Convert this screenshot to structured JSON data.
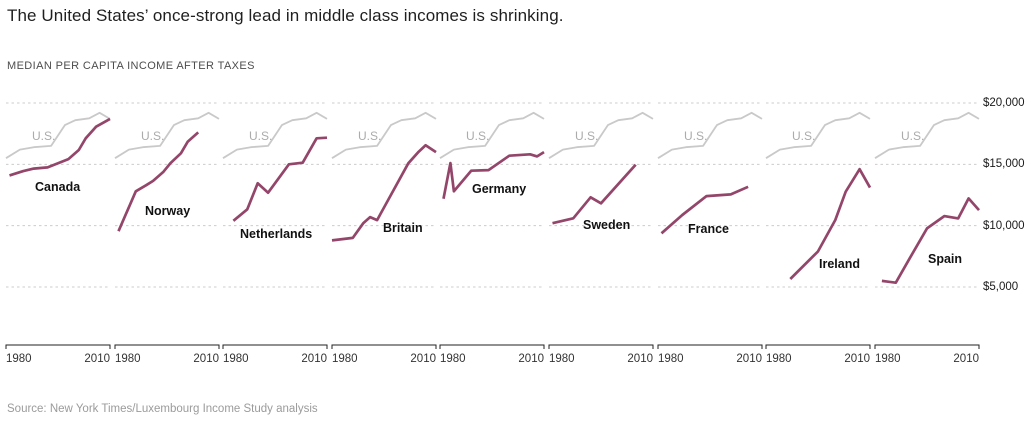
{
  "title": "The United States’ once-strong lead in middle class incomes is shrinking.",
  "subtitle": "MEDIAN PER CAPITA INCOME AFTER TAXES",
  "source": "Source: New York Times/Luxembourg Income Study analysis",
  "us_label": "U.S.",
  "colors": {
    "country_line": "#93466a",
    "us_line": "#c9c9c9",
    "gridline": "#cccccc",
    "axis": "#222222"
  },
  "chart_data": {
    "type": "line",
    "layout": "small-multiples",
    "title": "The United States’ once-strong lead in middle class incomes is shrinking.",
    "ylabel": "Median per capita income after taxes (USD)",
    "x_axis": {
      "start_label": "1980",
      "end_label": "2010",
      "range": [
        1980,
        2010
      ]
    },
    "y_axis": {
      "ticks": [
        20000,
        15000,
        10000,
        5000
      ],
      "tick_labels": [
        "$20,000",
        "$15,000",
        "$10,000",
        "$5,000"
      ],
      "grid": "dashed"
    },
    "reference_series": {
      "name": "U.S.",
      "points": [
        [
          1980,
          15500
        ],
        [
          1984,
          16200
        ],
        [
          1988,
          16400
        ],
        [
          1993,
          16500
        ],
        [
          1997,
          18200
        ],
        [
          2000,
          18600
        ],
        [
          2004,
          18750
        ],
        [
          2007,
          19200
        ],
        [
          2010,
          18700
        ]
      ]
    },
    "panels": [
      {
        "country": "Canada",
        "points": [
          [
            1981,
            14100
          ],
          [
            1985,
            14450
          ],
          [
            1988,
            14650
          ],
          [
            1992,
            14750
          ],
          [
            1998,
            15430
          ],
          [
            2001,
            16170
          ],
          [
            2003,
            17120
          ],
          [
            2006,
            18070
          ],
          [
            2010,
            18700
          ]
        ]
      },
      {
        "country": "Norway",
        "points": [
          [
            1981,
            9550
          ],
          [
            1986,
            12800
          ],
          [
            1989,
            13300
          ],
          [
            1991,
            13650
          ],
          [
            1994,
            14400
          ],
          [
            1996,
            15100
          ],
          [
            1999,
            15900
          ],
          [
            2001,
            16850
          ],
          [
            2004,
            17600
          ]
        ]
      },
      {
        "country": "Netherlands",
        "points": [
          [
            1983,
            10400
          ],
          [
            1987,
            11330
          ],
          [
            1990,
            13450
          ],
          [
            1993,
            12690
          ],
          [
            1999,
            15000
          ],
          [
            2003,
            15130
          ],
          [
            2007,
            17120
          ],
          [
            2010,
            17170
          ]
        ]
      },
      {
        "country": "Britain",
        "points": [
          [
            1980,
            8800
          ],
          [
            1986,
            9000
          ],
          [
            1989,
            10190
          ],
          [
            1991,
            10700
          ],
          [
            1993,
            10450
          ],
          [
            2002,
            15080
          ],
          [
            2005,
            16030
          ],
          [
            2007,
            16550
          ],
          [
            2010,
            16000
          ]
        ]
      },
      {
        "country": "Germany",
        "points": [
          [
            1981,
            12200
          ],
          [
            1983,
            15100
          ],
          [
            1984,
            12800
          ],
          [
            1989,
            14480
          ],
          [
            1994,
            14530
          ],
          [
            2000,
            15700
          ],
          [
            2006,
            15820
          ],
          [
            2008,
            15650
          ],
          [
            2010,
            16000
          ]
        ]
      },
      {
        "country": "Sweden",
        "points": [
          [
            1981,
            10200
          ],
          [
            1987,
            10600
          ],
          [
            1992,
            12310
          ],
          [
            1995,
            11820
          ],
          [
            2005,
            14970
          ]
        ]
      },
      {
        "country": "France",
        "points": [
          [
            1981,
            9380
          ],
          [
            1987,
            10870
          ],
          [
            1994,
            12410
          ],
          [
            2001,
            12550
          ],
          [
            2006,
            13170
          ]
        ]
      },
      {
        "country": "Ireland",
        "points": [
          [
            1987,
            5650
          ],
          [
            1995,
            7900
          ],
          [
            2000,
            10460
          ],
          [
            2003,
            12770
          ],
          [
            2007,
            14600
          ],
          [
            2010,
            13100
          ]
        ]
      },
      {
        "country": "Spain",
        "points": [
          [
            1982,
            5500
          ],
          [
            1986,
            5350
          ],
          [
            1990,
            7340
          ],
          [
            1995,
            9780
          ],
          [
            2000,
            10780
          ],
          [
            2004,
            10590
          ],
          [
            2007,
            12220
          ],
          [
            2010,
            11270
          ]
        ]
      }
    ]
  }
}
